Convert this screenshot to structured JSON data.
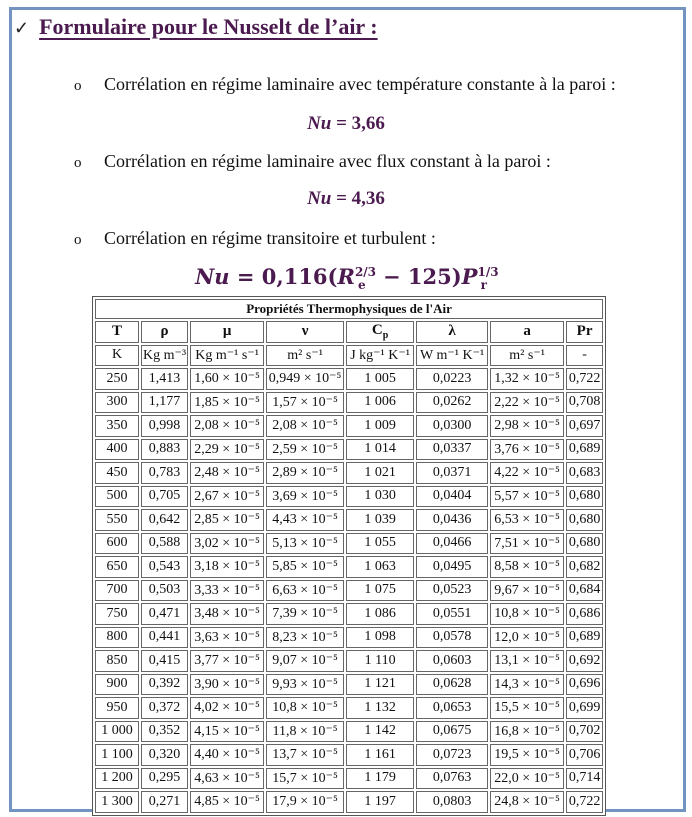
{
  "heading": {
    "check_icon": "✓",
    "title": "Formulaire pour le Nusselt de l’air :"
  },
  "bullets": [
    {
      "icon": "o",
      "text": "Corrélation en régime laminaire avec température constante à la paroi :"
    },
    {
      "icon": "o",
      "text": "Corrélation en régime laminaire avec flux constant à la paroi :"
    },
    {
      "icon": "o",
      "text": "Corrélation en régime transitoire et turbulent :"
    }
  ],
  "formulas": {
    "f1": {
      "lhs": "Nu",
      "rhs": " = 3,66"
    },
    "f2": {
      "lhs": "Nu",
      "rhs": " = 4,36"
    },
    "f3": {
      "lhs": "Nu",
      "eq": " = 0,116(",
      "Re_base": "R",
      "Re_sup": "2/3",
      "Re_sub": "e",
      "mid": " − 125)",
      "Pr_base": "P",
      "Pr_sup": "1/3",
      "Pr_sub": "r"
    }
  },
  "table": {
    "caption": "Propriétés Thermophysiques de l'Air",
    "headers": [
      "T",
      "ρ",
      "μ",
      "ν",
      "Cp",
      "λ",
      "a",
      "Pr"
    ],
    "units": [
      "K",
      "Kg m⁻³",
      "Kg m⁻¹ s⁻¹",
      "m² s⁻¹",
      "J kg⁻¹ K⁻¹",
      "W m⁻¹ K⁻¹",
      "m² s⁻¹",
      "-"
    ],
    "rows": [
      [
        "250",
        "1,413",
        "1,60 × 10⁻⁵",
        "0,949 × 10⁻⁵",
        "1 005",
        "0,0223",
        "1,32 × 10⁻⁵",
        "0,722"
      ],
      [
        "300",
        "1,177",
        "1,85 × 10⁻⁵",
        "1,57 × 10⁻⁵",
        "1 006",
        "0,0262",
        "2,22 × 10⁻⁵",
        "0,708"
      ],
      [
        "350",
        "0,998",
        "2,08 × 10⁻⁵",
        "2,08 × 10⁻⁵",
        "1 009",
        "0,0300",
        "2,98 × 10⁻⁵",
        "0,697"
      ],
      [
        "400",
        "0,883",
        "2,29 × 10⁻⁵",
        "2,59 × 10⁻⁵",
        "1 014",
        "0,0337",
        "3,76 × 10⁻⁵",
        "0,689"
      ],
      [
        "450",
        "0,783",
        "2,48 × 10⁻⁵",
        "2,89 × 10⁻⁵",
        "1 021",
        "0,0371",
        "4,22 × 10⁻⁵",
        "0,683"
      ],
      [
        "500",
        "0,705",
        "2,67 × 10⁻⁵",
        "3,69 × 10⁻⁵",
        "1 030",
        "0,0404",
        "5,57 × 10⁻⁵",
        "0,680"
      ],
      [
        "550",
        "0,642",
        "2,85 × 10⁻⁵",
        "4,43 × 10⁻⁵",
        "1 039",
        "0,0436",
        "6,53 × 10⁻⁵",
        "0,680"
      ],
      [
        "600",
        "0,588",
        "3,02 × 10⁻⁵",
        "5,13 × 10⁻⁵",
        "1 055",
        "0,0466",
        "7,51 × 10⁻⁵",
        "0,680"
      ],
      [
        "650",
        "0,543",
        "3,18 × 10⁻⁵",
        "5,85 × 10⁻⁵",
        "1 063",
        "0,0495",
        "8,58 × 10⁻⁵",
        "0,682"
      ],
      [
        "700",
        "0,503",
        "3,33 × 10⁻⁵",
        "6,63 × 10⁻⁵",
        "1 075",
        "0,0523",
        "9,67 × 10⁻⁵",
        "0,684"
      ],
      [
        "750",
        "0,471",
        "3,48 × 10⁻⁵",
        "7,39 × 10⁻⁵",
        "1 086",
        "0,0551",
        "10,8 × 10⁻⁵",
        "0,686"
      ],
      [
        "800",
        "0,441",
        "3,63 × 10⁻⁵",
        "8,23 × 10⁻⁵",
        "1 098",
        "0,0578",
        "12,0 × 10⁻⁵",
        "0,689"
      ],
      [
        "850",
        "0,415",
        "3,77 × 10⁻⁵",
        "9,07 × 10⁻⁵",
        "1 110",
        "0,0603",
        "13,1 × 10⁻⁵",
        "0,692"
      ],
      [
        "900",
        "0,392",
        "3,90 × 10⁻⁵",
        "9,93 × 10⁻⁵",
        "1 121",
        "0,0628",
        "14,3 × 10⁻⁵",
        "0,696"
      ],
      [
        "950",
        "0,372",
        "4,02 × 10⁻⁵",
        "10,8 × 10⁻⁵",
        "1 132",
        "0,0653",
        "15,5 × 10⁻⁵",
        "0,699"
      ],
      [
        "1 000",
        "0,352",
        "4,15 × 10⁻⁵",
        "11,8 × 10⁻⁵",
        "1 142",
        "0,0675",
        "16,8 × 10⁻⁵",
        "0,702"
      ],
      [
        "1 100",
        "0,320",
        "4,40 × 10⁻⁵",
        "13,7 × 10⁻⁵",
        "1 161",
        "0,0723",
        "19,5 × 10⁻⁵",
        "0,706"
      ],
      [
        "1 200",
        "0,295",
        "4,63 × 10⁻⁵",
        "15,7 × 10⁻⁵",
        "1 179",
        "0,0763",
        "22,0 × 10⁻⁵",
        "0,714"
      ],
      [
        "1 300",
        "0,271",
        "4,85 × 10⁻⁵",
        "17,9 × 10⁻⁵",
        "1 197",
        "0,0803",
        "24,8 × 10⁻⁵",
        "0,722"
      ]
    ]
  },
  "colors": {
    "accent": "#4b1a4f",
    "frame": "#7394c0"
  }
}
